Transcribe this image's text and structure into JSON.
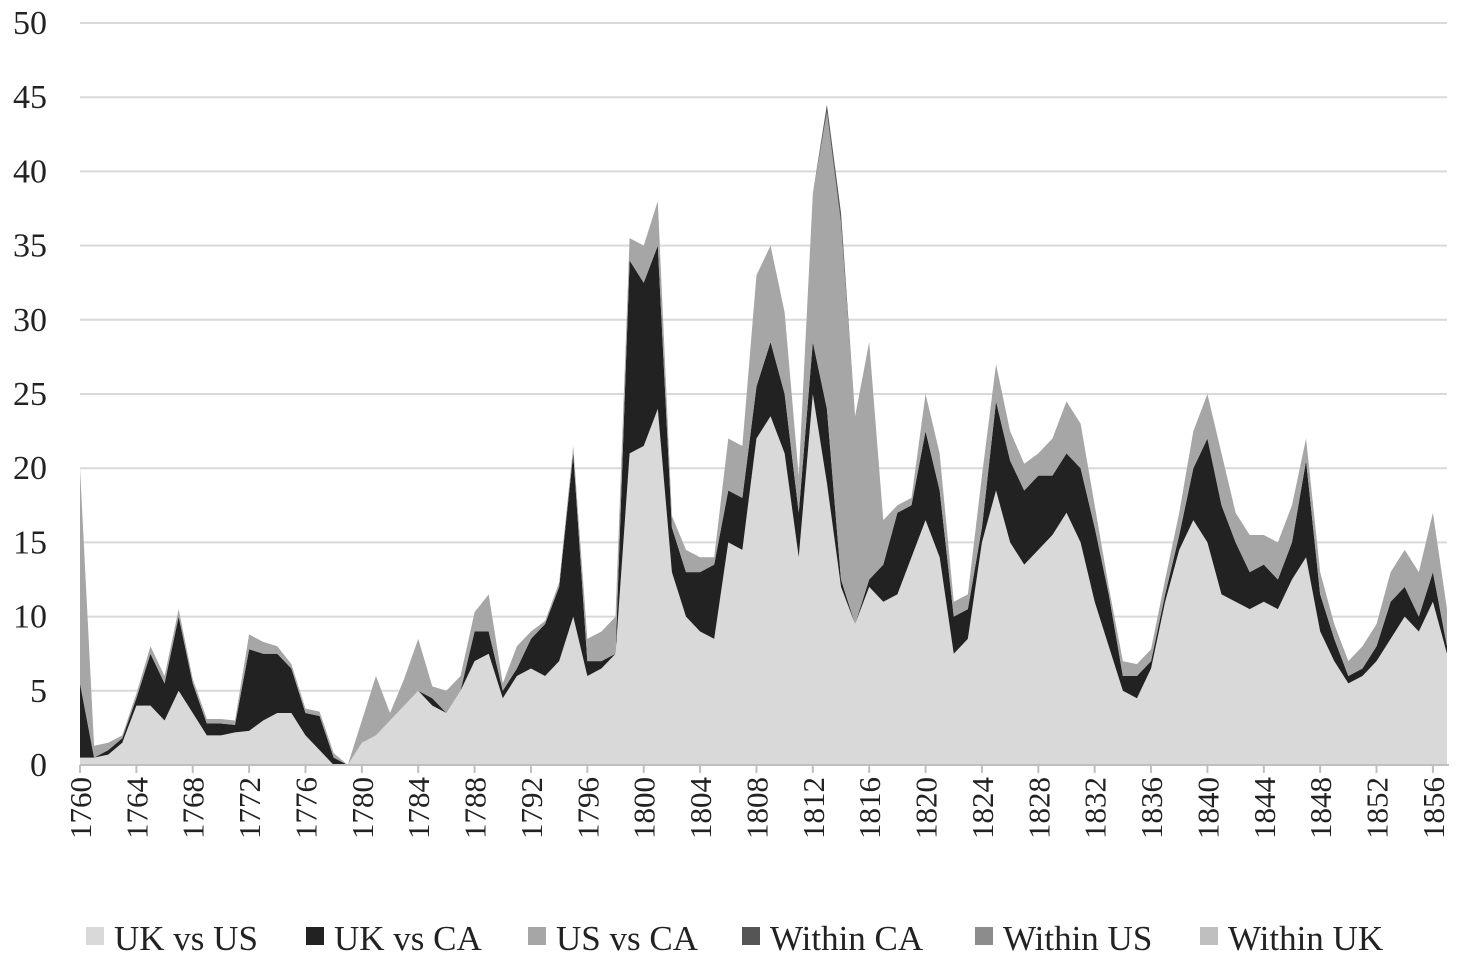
{
  "chart_data": {
    "type": "area",
    "stacked": true,
    "title": "",
    "xlabel": "",
    "ylabel": "",
    "ylim": [
      0,
      50
    ],
    "yticks": [
      0,
      5,
      10,
      15,
      20,
      25,
      30,
      35,
      40,
      45,
      50
    ],
    "x": [
      1760,
      1761,
      1762,
      1763,
      1764,
      1765,
      1766,
      1767,
      1768,
      1769,
      1770,
      1771,
      1772,
      1773,
      1774,
      1775,
      1776,
      1777,
      1778,
      1779,
      1780,
      1781,
      1782,
      1783,
      1784,
      1785,
      1786,
      1787,
      1788,
      1789,
      1790,
      1791,
      1792,
      1793,
      1794,
      1795,
      1796,
      1797,
      1798,
      1799,
      1800,
      1801,
      1802,
      1803,
      1804,
      1805,
      1806,
      1807,
      1808,
      1809,
      1810,
      1811,
      1812,
      1813,
      1814,
      1815,
      1816,
      1817,
      1818,
      1819,
      1820,
      1821,
      1822,
      1823,
      1824,
      1825,
      1826,
      1827,
      1828,
      1829,
      1830,
      1831,
      1832,
      1833,
      1834,
      1835,
      1836,
      1837,
      1838,
      1839,
      1840,
      1841,
      1842,
      1843,
      1844,
      1845,
      1846,
      1847,
      1848,
      1849,
      1850,
      1851,
      1852,
      1853,
      1854,
      1855,
      1856,
      1857
    ],
    "xtick_labels": [
      "1760",
      "1764",
      "1768",
      "1772",
      "1776",
      "1780",
      "1784",
      "1788",
      "1792",
      "1796",
      "1800",
      "1804",
      "1808",
      "1812",
      "1816",
      "1820",
      "1824",
      "1828",
      "1832",
      "1836",
      "1840",
      "1844",
      "1848",
      "1852",
      "1856"
    ],
    "legend_position": "bottom",
    "series": [
      {
        "name": "UK vs US",
        "color": "#d9d9d9",
        "values": [
          0.5,
          0.5,
          0.7,
          1.5,
          4,
          4,
          3,
          5,
          3.5,
          2,
          2,
          2.2,
          2.3,
          3,
          3.5,
          3.5,
          2,
          1,
          0,
          0,
          1.5,
          2,
          3,
          4,
          5,
          4,
          3.5,
          5,
          7,
          7.5,
          4.5,
          6,
          6.5,
          6,
          7,
          10,
          6,
          6.5,
          7.5,
          21,
          21.5,
          24,
          13,
          10,
          9,
          8.5,
          15,
          14.5,
          22,
          23.5,
          21,
          14,
          25,
          19,
          12,
          9.5,
          12,
          11,
          11.5,
          14,
          16.5,
          14,
          7.5,
          8.5,
          15,
          18.5,
          15,
          13.5,
          14.5,
          15.5,
          17,
          15,
          11,
          8,
          5,
          4.5,
          6.5,
          11,
          14.5,
          16.5,
          15,
          11.5,
          11,
          10.5,
          11,
          10.5,
          12.5,
          14,
          9,
          7,
          5.5,
          6,
          7,
          8.5,
          10,
          9,
          11,
          7.5
        ]
      },
      {
        "name": "UK vs CA",
        "color": "#222222",
        "values": [
          5,
          0,
          0.3,
          0.3,
          0.5,
          3.5,
          2.5,
          5,
          2,
          0.8,
          0.8,
          0.5,
          5.5,
          4.5,
          4,
          3,
          1.5,
          2.3,
          0.5,
          0,
          0,
          0,
          0,
          0,
          0,
          0.5,
          0,
          0,
          2,
          1.5,
          0.5,
          0.5,
          2,
          3.5,
          5,
          11,
          1,
          0.5,
          0,
          13,
          11,
          11,
          3,
          3,
          4,
          5,
          3.5,
          3.5,
          3.5,
          5,
          4,
          3,
          3.5,
          5,
          0.5,
          0,
          0.5,
          2.5,
          5.5,
          3.5,
          6,
          4.5,
          2.5,
          2,
          1,
          6,
          5.5,
          5,
          5,
          4,
          4,
          5,
          5,
          3.5,
          1,
          1.5,
          0.5,
          0.5,
          1,
          3.5,
          7,
          6,
          4,
          2.5,
          2.5,
          2,
          2.5,
          6.5,
          2.5,
          1.5,
          0.5,
          0.5,
          1,
          2.5,
          2,
          1,
          2,
          0.5
        ]
      },
      {
        "name": "US vs CA",
        "color": "#a6a6a6",
        "values": [
          14.5,
          0.8,
          0.5,
          0.2,
          0.3,
          0.5,
          0.5,
          0.5,
          0.3,
          0.3,
          0.3,
          0.3,
          1,
          0.8,
          0.5,
          0.3,
          0.3,
          0.3,
          0.3,
          0,
          1.5,
          4,
          0.5,
          1.8,
          3.5,
          0.8,
          1.5,
          1,
          1.3,
          2.5,
          0.5,
          1.5,
          0.5,
          0.2,
          0.3,
          0.5,
          1.5,
          2,
          2.5,
          1.5,
          2.5,
          3,
          0.8,
          1.5,
          1,
          0.5,
          3.5,
          3.5,
          7.5,
          6.5,
          5.5,
          2.5,
          10,
          20,
          24,
          14,
          16,
          3,
          0.5,
          0.5,
          2.5,
          2.5,
          1,
          1,
          3.5,
          2.5,
          2,
          1.8,
          1.5,
          2.5,
          3.5,
          3,
          1.5,
          0.5,
          1,
          0.8,
          0.8,
          1,
          1.5,
          2.5,
          3,
          3.5,
          2,
          2.5,
          2,
          2.5,
          2.5,
          1.5,
          1.5,
          1,
          1,
          1.5,
          1.5,
          2,
          2.5,
          3,
          4,
          2.5
        ]
      },
      {
        "name": "Within CA",
        "color": "#555555",
        "values": [
          0,
          0,
          0,
          0,
          0,
          0,
          0,
          0,
          0,
          0,
          0,
          0,
          0,
          0,
          0,
          0,
          0,
          0,
          0,
          0,
          0,
          0,
          0,
          0,
          0,
          0,
          0,
          0,
          0,
          0,
          0,
          0,
          0,
          0,
          0,
          0,
          0,
          0,
          0,
          0,
          0,
          0,
          0,
          0,
          0,
          0,
          0,
          0,
          0,
          0,
          0,
          0,
          0,
          0.5,
          0.7,
          0,
          0,
          0,
          0,
          0,
          0,
          0,
          0,
          0,
          0,
          0,
          0,
          0,
          0,
          0,
          0,
          0,
          0,
          0,
          0,
          0,
          0,
          0,
          0,
          0,
          0,
          0,
          0,
          0,
          0,
          0,
          0,
          0,
          0,
          0,
          0,
          0,
          0,
          0,
          0,
          0,
          0,
          0
        ]
      },
      {
        "name": "Within US",
        "color": "#8c8c8c",
        "values": [
          0,
          0,
          0,
          0,
          0,
          0,
          0,
          0,
          0,
          0,
          0,
          0,
          0,
          0,
          0,
          0,
          0,
          0,
          0,
          0,
          0,
          0,
          0,
          0,
          0,
          0,
          0,
          0,
          0,
          0,
          0,
          0,
          0,
          0,
          0,
          0,
          0,
          0,
          0,
          0,
          0,
          0,
          0,
          0,
          0,
          0,
          0,
          0,
          0,
          0,
          0,
          0,
          0,
          0,
          0,
          0,
          0,
          0,
          0,
          0,
          0,
          0,
          0,
          0,
          0,
          0,
          0,
          0,
          0,
          0,
          0,
          0,
          0,
          0,
          0,
          0,
          0,
          0,
          0,
          0,
          0,
          0,
          0,
          0,
          0,
          0,
          0,
          0,
          0,
          0,
          0,
          0,
          0,
          0,
          0,
          0,
          0,
          0
        ]
      },
      {
        "name": "Within UK",
        "color": "#bfbfbf",
        "values": [
          0,
          0,
          0,
          0,
          0,
          0,
          0,
          0,
          0,
          0,
          0,
          0,
          0,
          0,
          0,
          0,
          0,
          0,
          0,
          0,
          0,
          0,
          0,
          0,
          0,
          0,
          0,
          0,
          0,
          0,
          0,
          0,
          0,
          0,
          0,
          0,
          0,
          0,
          0,
          0,
          0,
          0,
          0,
          0,
          0,
          0,
          0,
          0,
          0,
          0,
          0,
          0,
          0,
          0,
          0,
          0,
          0,
          0,
          0,
          0,
          0,
          0,
          0,
          0,
          0,
          0,
          0,
          0,
          0,
          0,
          0,
          0,
          0,
          0,
          0,
          0,
          0,
          0,
          0,
          0,
          0,
          0,
          0,
          0,
          0,
          0,
          0,
          0,
          0,
          0,
          0,
          0,
          0,
          0,
          0,
          0,
          0,
          0
        ]
      }
    ]
  }
}
